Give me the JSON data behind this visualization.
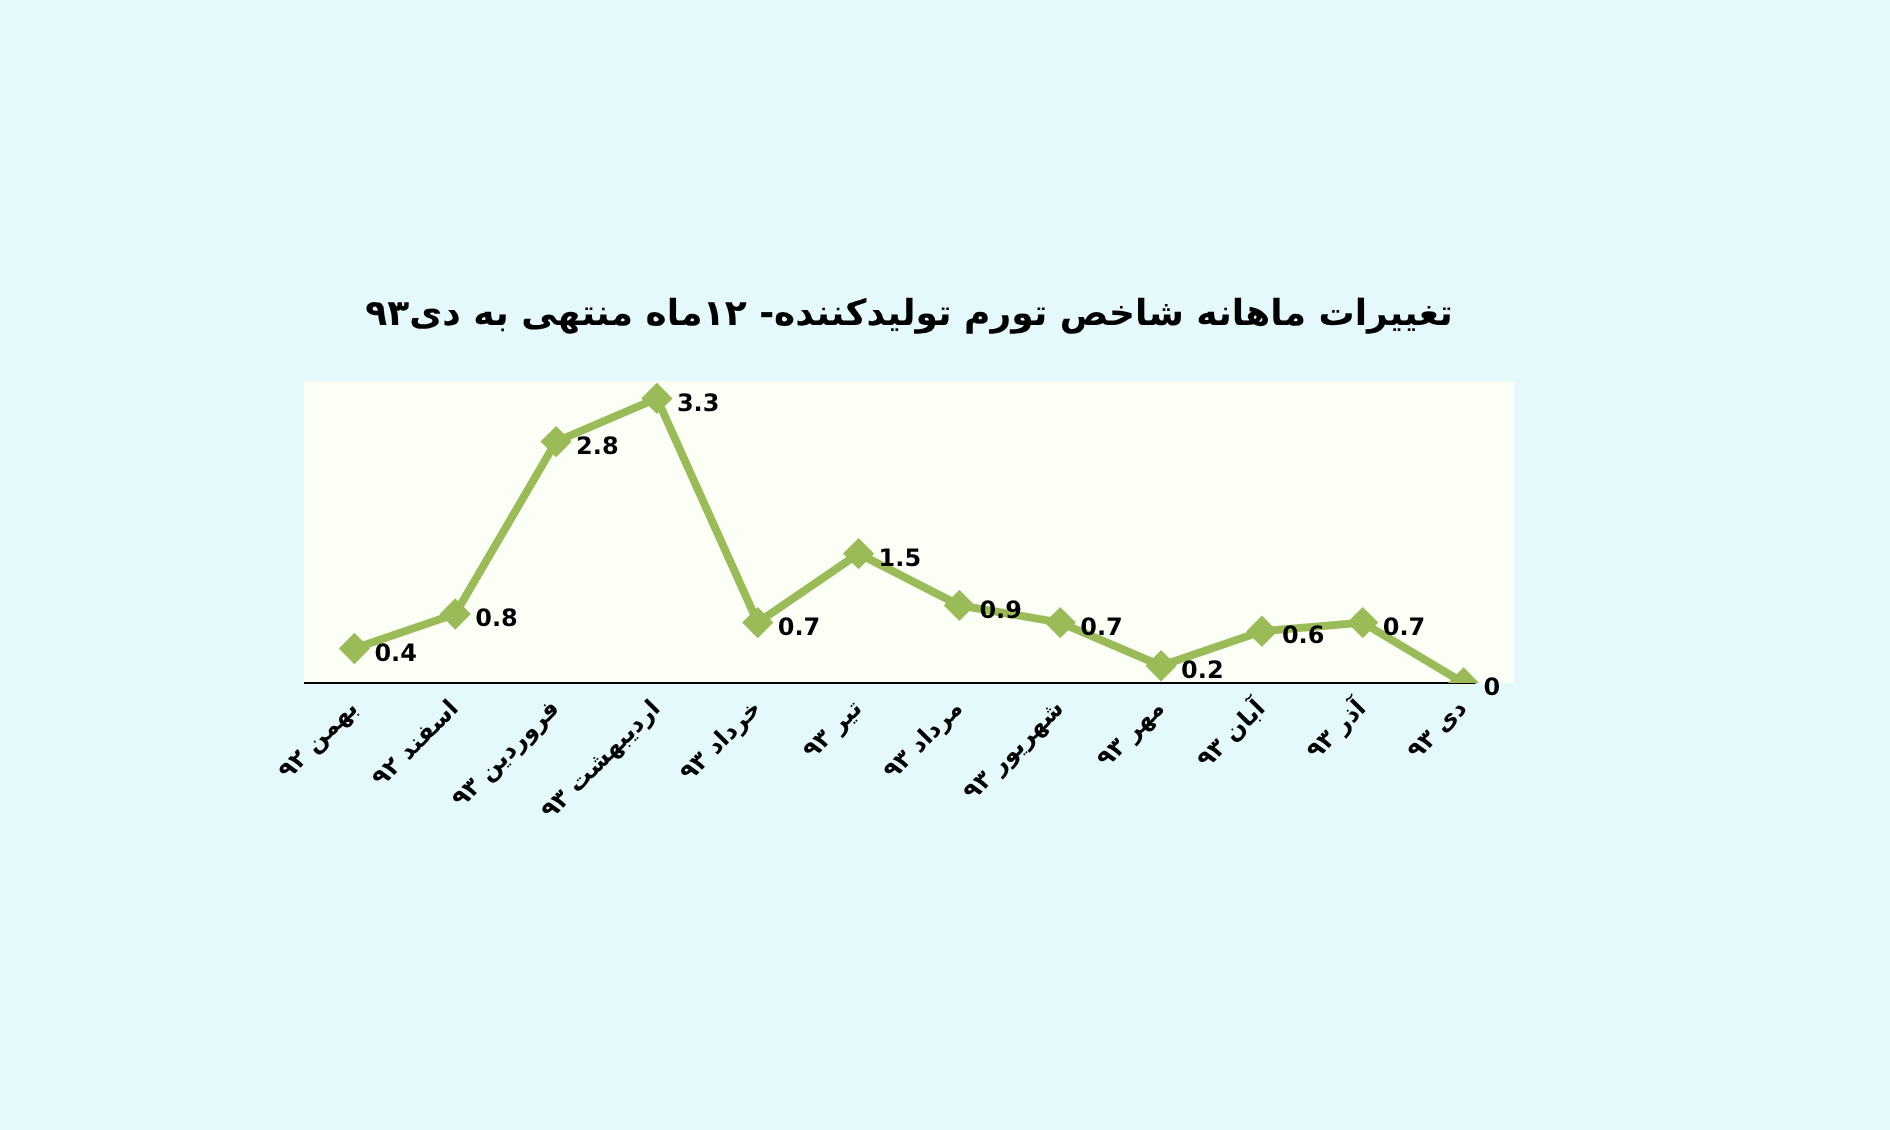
{
  "chart_data": {
    "type": "line",
    "title": "تغییرات ماهانه شاخص تورم تولیدکننده- ۱۲ماه منتهی به دی۹۳",
    "categories": [
      "بهمن ۹۲",
      "اسفند ۹۲",
      "فروردین ۹۳",
      "اردیبهشت ۹۳",
      "خرداد ۹۳",
      "تیر ۹۳",
      "مرداد ۹۳",
      "شهریور ۹۳",
      "مهر ۹۳",
      "آبان ۹۳",
      "آذر ۹۳",
      "دی ۹۳"
    ],
    "series": [
      {
        "color": "#9bbb59",
        "values": [
          0.4,
          0.8,
          2.8,
          3.3,
          0.7,
          1.5,
          0.9,
          0.7,
          0.2,
          0.6,
          0.7,
          0
        ]
      }
    ],
    "ylim": [
      0,
      3.5
    ],
    "data_labels": true,
    "marker": "diamond",
    "line_style": "solid",
    "grid": false,
    "legend": false,
    "tick_labels": "x"
  }
}
